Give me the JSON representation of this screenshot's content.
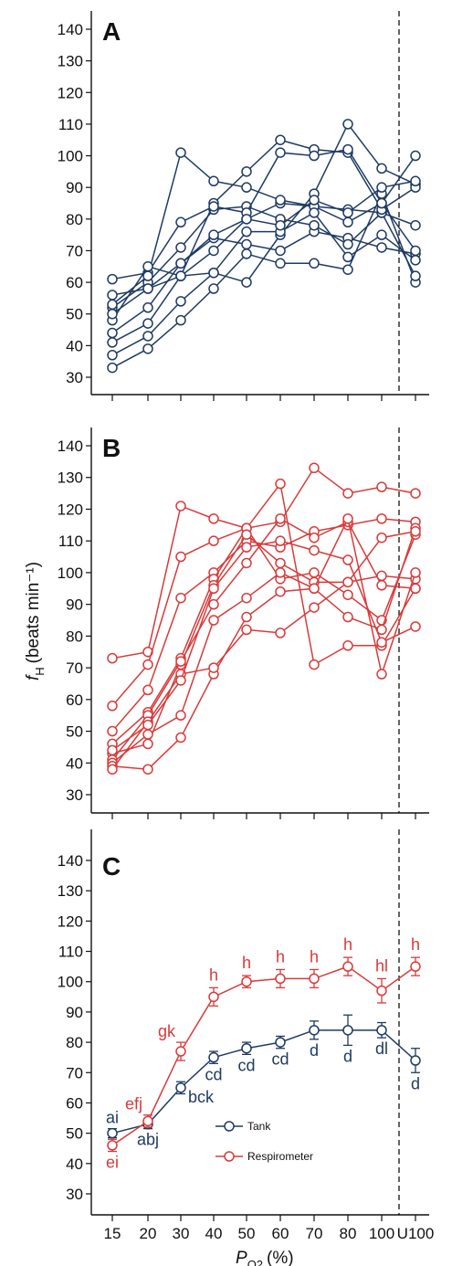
{
  "colors": {
    "tank": "#1f3b63",
    "respirometer": "#d93a3a",
    "axis": "#111111"
  },
  "x_tick_labels": [
    "15",
    "20",
    "30",
    "40",
    "50",
    "60",
    "70",
    "80",
    "100",
    "U100"
  ],
  "y_tick_labels": [
    "30",
    "40",
    "50",
    "60",
    "70",
    "80",
    "90",
    "100",
    "110",
    "120",
    "130",
    "140"
  ],
  "xlabel_main": "P",
  "xlabel_sub": "O2",
  "xlabel_unit": "(%)",
  "ylabel_main": "f",
  "ylabel_sub": "H",
  "ylabel_unit": "(beats min⁻¹)",
  "chart_data": [
    {
      "panel": "A",
      "type": "line",
      "color_key": "tank",
      "categories": [
        "15",
        "20",
        "30",
        "40",
        "50",
        "60",
        "70",
        "80",
        "100",
        "U100"
      ],
      "ylim": [
        25,
        145
      ],
      "dashed_line_between": [
        "100",
        "U100"
      ],
      "series": [
        {
          "values": [
            33,
            39,
            48,
            58,
            69,
            66,
            66,
            64,
            88,
            60
          ]
        },
        {
          "values": [
            37,
            43,
            54,
            63,
            60,
            75,
            88,
            110,
            96,
            91
          ]
        },
        {
          "values": [
            41,
            47,
            62,
            70,
            80,
            85,
            84,
            83,
            82,
            78
          ]
        },
        {
          "values": [
            44,
            52,
            66,
            74,
            72,
            70,
            76,
            74,
            71,
            69
          ]
        },
        {
          "values": [
            52,
            60,
            71,
            83,
            84,
            80,
            78,
            72,
            82,
            62
          ]
        },
        {
          "values": [
            56,
            58,
            62,
            85,
            95,
            105,
            102,
            101,
            83,
            90
          ]
        },
        {
          "values": [
            61,
            63,
            79,
            84,
            82,
            101,
            100,
            102,
            85,
            70
          ]
        },
        {
          "values": [
            53,
            62,
            101,
            92,
            90,
            86,
            84,
            79,
            85,
            100
          ]
        },
        {
          "values": [
            48,
            65,
            62,
            63,
            76,
            76,
            82,
            68,
            75,
            67
          ]
        },
        {
          "values": [
            50,
            58,
            66,
            75,
            80,
            78,
            86,
            82,
            90,
            92
          ]
        }
      ]
    },
    {
      "panel": "B",
      "type": "line",
      "color_key": "respirometer",
      "categories": [
        "15",
        "20",
        "30",
        "40",
        "50",
        "60",
        "70",
        "80",
        "100",
        "U100"
      ],
      "ylim": [
        25,
        145
      ],
      "dashed_line_between": [
        "100",
        "U100"
      ],
      "series": [
        {
          "values": [
            73,
            75,
            121,
            117,
            114,
            128,
            71,
            77,
            77,
            95
          ]
        },
        {
          "values": [
            58,
            71,
            105,
            110,
            114,
            116,
            133,
            125,
            127,
            125
          ]
        },
        {
          "values": [
            50,
            63,
            92,
            100,
            110,
            108,
            113,
            115,
            117,
            116
          ]
        },
        {
          "values": [
            46,
            56,
            73,
            98,
            114,
            98,
            100,
            93,
            85,
            112
          ]
        },
        {
          "values": [
            43,
            46,
            71,
            96,
            112,
            103,
            97,
            97,
            99,
            98
          ]
        },
        {
          "values": [
            41,
            55,
            72,
            90,
            103,
            117,
            111,
            116,
            96,
            95
          ]
        },
        {
          "values": [
            40,
            49,
            55,
            85,
            92,
            100,
            95,
            86,
            82,
            114
          ]
        },
        {
          "values": [
            39,
            38,
            48,
            68,
            86,
            94,
            95,
            117,
            68,
            100
          ]
        },
        {
          "values": [
            38,
            53,
            68,
            70,
            82,
            81,
            89,
            97,
            111,
            113
          ]
        },
        {
          "values": [
            44,
            52,
            66,
            95,
            108,
            110,
            107,
            104,
            78,
            83
          ]
        }
      ]
    },
    {
      "panel": "C",
      "type": "line",
      "categories": [
        "15",
        "20",
        "30",
        "40",
        "50",
        "60",
        "70",
        "80",
        "100",
        "U100"
      ],
      "ylim": [
        25,
        145
      ],
      "dashed_line_between": [
        "100",
        "U100"
      ],
      "legend_position": "bottom-center",
      "series": [
        {
          "name": "Tank",
          "color_key": "tank",
          "values": [
            50,
            53,
            65,
            75,
            78,
            80,
            84,
            84,
            84,
            74
          ],
          "errors": [
            1.5,
            1.5,
            2,
            2,
            2,
            2,
            3,
            5,
            2.5,
            4
          ],
          "letters": [
            "ai",
            "abj",
            "bck",
            "cd",
            "cd",
            "cd",
            "d",
            "d",
            "dl",
            "d"
          ]
        },
        {
          "name": "Respirometer",
          "color_key": "respirometer",
          "values": [
            46,
            54,
            77,
            95,
            100,
            101,
            101,
            105,
            97,
            105
          ],
          "errors": [
            2,
            2,
            3,
            3,
            2,
            3,
            3,
            3,
            4,
            3
          ],
          "letters": [
            "ei",
            "efj",
            "gk",
            "h",
            "h",
            "h",
            "h",
            "h",
            "hl",
            "h"
          ]
        }
      ]
    }
  ]
}
